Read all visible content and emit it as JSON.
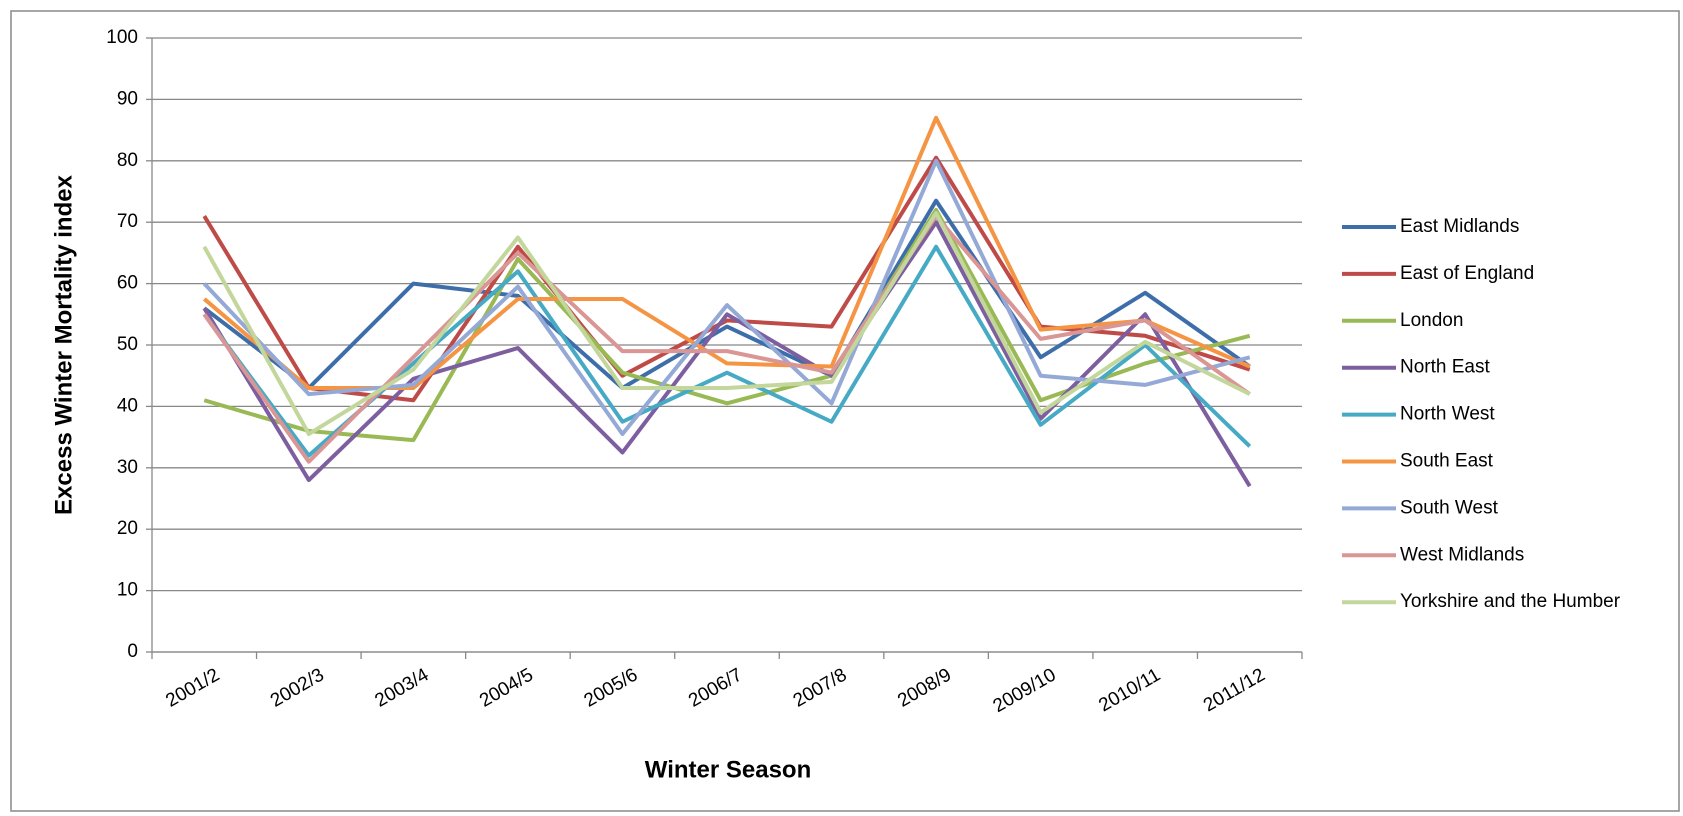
{
  "chart_data": {
    "type": "line",
    "x_label": "Winter Season",
    "y_label": "Excess Winter Mortality index",
    "categories": [
      "2001/2",
      "2002/3",
      "2003/4",
      "2004/5",
      "2005/6",
      "2006/7",
      "2007/8",
      "2008/9",
      "2009/10",
      "2010/11",
      "2011/12"
    ],
    "series": [
      {
        "name": "East Midlands",
        "color": "#3D6EAA",
        "values": [
          56,
          43,
          60,
          58,
          43,
          53,
          45,
          73.5,
          48,
          58.5,
          46.5
        ]
      },
      {
        "name": "East of England",
        "color": "#BE4B48",
        "values": [
          71,
          43,
          41,
          66,
          45,
          54,
          53,
          80.5,
          53,
          51.5,
          46
        ]
      },
      {
        "name": "London",
        "color": "#98B954",
        "values": [
          41,
          36,
          34.5,
          64,
          45.5,
          40.5,
          45,
          72,
          41,
          47,
          51.5
        ]
      },
      {
        "name": "North East",
        "color": "#7D5FA0",
        "values": [
          56,
          28,
          44.5,
          49.5,
          32.5,
          55,
          45,
          70,
          38,
          55,
          27
        ]
      },
      {
        "name": "North West",
        "color": "#46AAC5",
        "values": [
          55,
          32,
          47,
          62,
          37.5,
          45.5,
          37.5,
          66,
          37,
          50,
          33.5
        ]
      },
      {
        "name": "South East",
        "color": "#F59443",
        "values": [
          57.5,
          43,
          43,
          57.5,
          57.5,
          47,
          46.5,
          87,
          52.5,
          54,
          46.5
        ]
      },
      {
        "name": "South West",
        "color": "#94A9D6",
        "values": [
          60,
          42,
          43.5,
          59.5,
          35.5,
          56.5,
          40.5,
          80,
          45,
          43.5,
          48
        ]
      },
      {
        "name": "West Midlands",
        "color": "#D99694",
        "values": [
          55,
          31,
          48,
          65,
          49,
          49,
          45.5,
          71,
          51,
          54,
          42
        ]
      },
      {
        "name": "Yorkshire and the Humber",
        "color": "#C3D69B",
        "values": [
          66,
          35.5,
          46,
          67.5,
          43,
          43,
          44,
          71.5,
          39,
          50.5,
          42
        ]
      }
    ],
    "ylim": [
      0,
      100
    ],
    "yticks": [
      0,
      10,
      20,
      30,
      40,
      50,
      60,
      70,
      80,
      90,
      100
    ],
    "grid": true,
    "legend": "right"
  }
}
